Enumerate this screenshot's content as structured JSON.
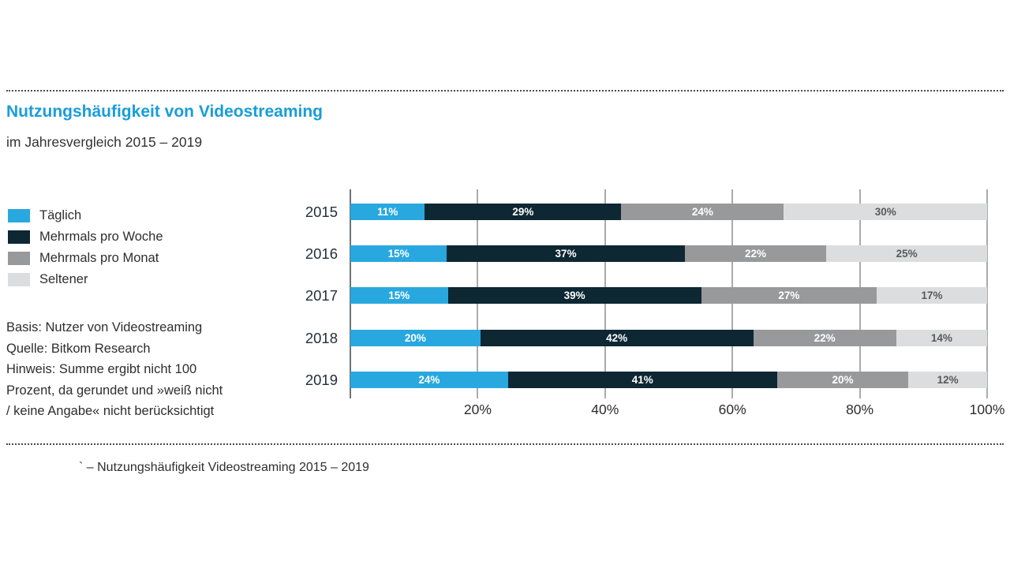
{
  "title": "Nutzungshäufigkeit von Videostreaming",
  "subtitle": "im Jahresvergleich 2015 – 2019",
  "colors": {
    "title_blue": "#189dd9",
    "axis_line": "#6e7376",
    "gridline": "#ababab",
    "dotted_rule": "#4a4a4a"
  },
  "legend": {
    "items": [
      {
        "label": "Täglich",
        "color": "#29a8df"
      },
      {
        "label": "Mehrmals pro Woche",
        "color": "#0d2733"
      },
      {
        "label": "Mehrmals pro Monat",
        "color": "#98999b"
      },
      {
        "label": "Seltener",
        "color": "#dcddde"
      }
    ]
  },
  "notes": {
    "lines": [
      "Basis: Nutzer von Videostreaming",
      "Quelle: Bitkom Research",
      "Hinweis: Summe ergibt nicht 100",
      "Prozent, da gerundet und »weiß nicht",
      "/ keine Angabe« nicht berücksichtigt"
    ]
  },
  "caption": "` – Nutzungshäufigkeit Videostreaming 2015 – 2019",
  "chart_data": {
    "type": "bar",
    "orientation": "horizontal-stacked",
    "normalized_to_full_width": true,
    "title": "Nutzungshäufigkeit von Videostreaming",
    "categories": [
      "2015",
      "2016",
      "2017",
      "2018",
      "2019"
    ],
    "series": [
      {
        "name": "Täglich",
        "color": "#29a8df",
        "label_color": "#ffffff",
        "values": [
          11,
          15,
          15,
          20,
          24
        ]
      },
      {
        "name": "Mehrmals pro Woche",
        "color": "#0d2733",
        "label_color": "#ffffff",
        "values": [
          29,
          37,
          39,
          42,
          41
        ]
      },
      {
        "name": "Mehrmals pro Monat",
        "color": "#98999b",
        "label_color": "#ffffff",
        "values": [
          24,
          22,
          27,
          22,
          20
        ]
      },
      {
        "name": "Seltener",
        "color": "#dcddde",
        "label_color": "#58595b",
        "values": [
          30,
          25,
          17,
          14,
          12
        ]
      }
    ],
    "value_suffix": "%",
    "xlim": [
      0,
      100
    ],
    "x_ticks": [
      {
        "label": "20%",
        "pct": 20
      },
      {
        "label": "40%",
        "pct": 40
      },
      {
        "label": "60%",
        "pct": 60
      },
      {
        "label": "80%",
        "pct": 80
      },
      {
        "label": "100%",
        "pct": 100
      }
    ],
    "gridlines_pct": [
      0,
      20,
      40,
      60,
      80,
      100
    ],
    "legend_position": "left",
    "horizontal_gridlines": false
  }
}
